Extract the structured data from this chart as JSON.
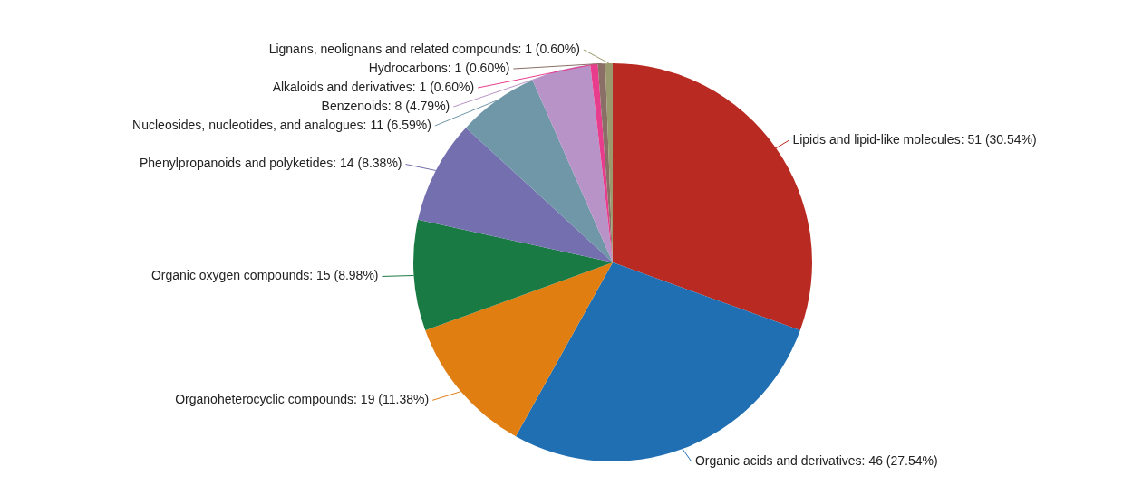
{
  "chart_data": {
    "type": "pie",
    "categories": [
      "Lipids and lipid-like molecules",
      "Organic acids and derivatives",
      "Organoheterocyclic compounds",
      "Organic oxygen compounds",
      "Phenylpropanoids and polyketides",
      "Nucleosides, nucleotides, and analogues",
      "Benzenoids",
      "Alkaloids and derivatives",
      "Hydrocarbons",
      "Lignans, neolignans and related compounds"
    ],
    "values": [
      51,
      46,
      19,
      15,
      14,
      11,
      8,
      1,
      1,
      1
    ],
    "value_labels": [
      "51 (30.54%)",
      "46 (27.54%)",
      "19 (11.38%)",
      "15 (8.98%)",
      "14 (8.38%)",
      "11 (6.59%)",
      "8 (4.79%)",
      "1 (0.60%)",
      "1 (0.60%)",
      "1 (0.60%)"
    ],
    "colors": [
      "#b82a22",
      "#1f6fb2",
      "#e07e12",
      "#1a7a44",
      "#7470b0",
      "#6f97a8",
      "#b893c8",
      "#e83c8c",
      "#8a6f66",
      "#9a9a6e"
    ]
  }
}
